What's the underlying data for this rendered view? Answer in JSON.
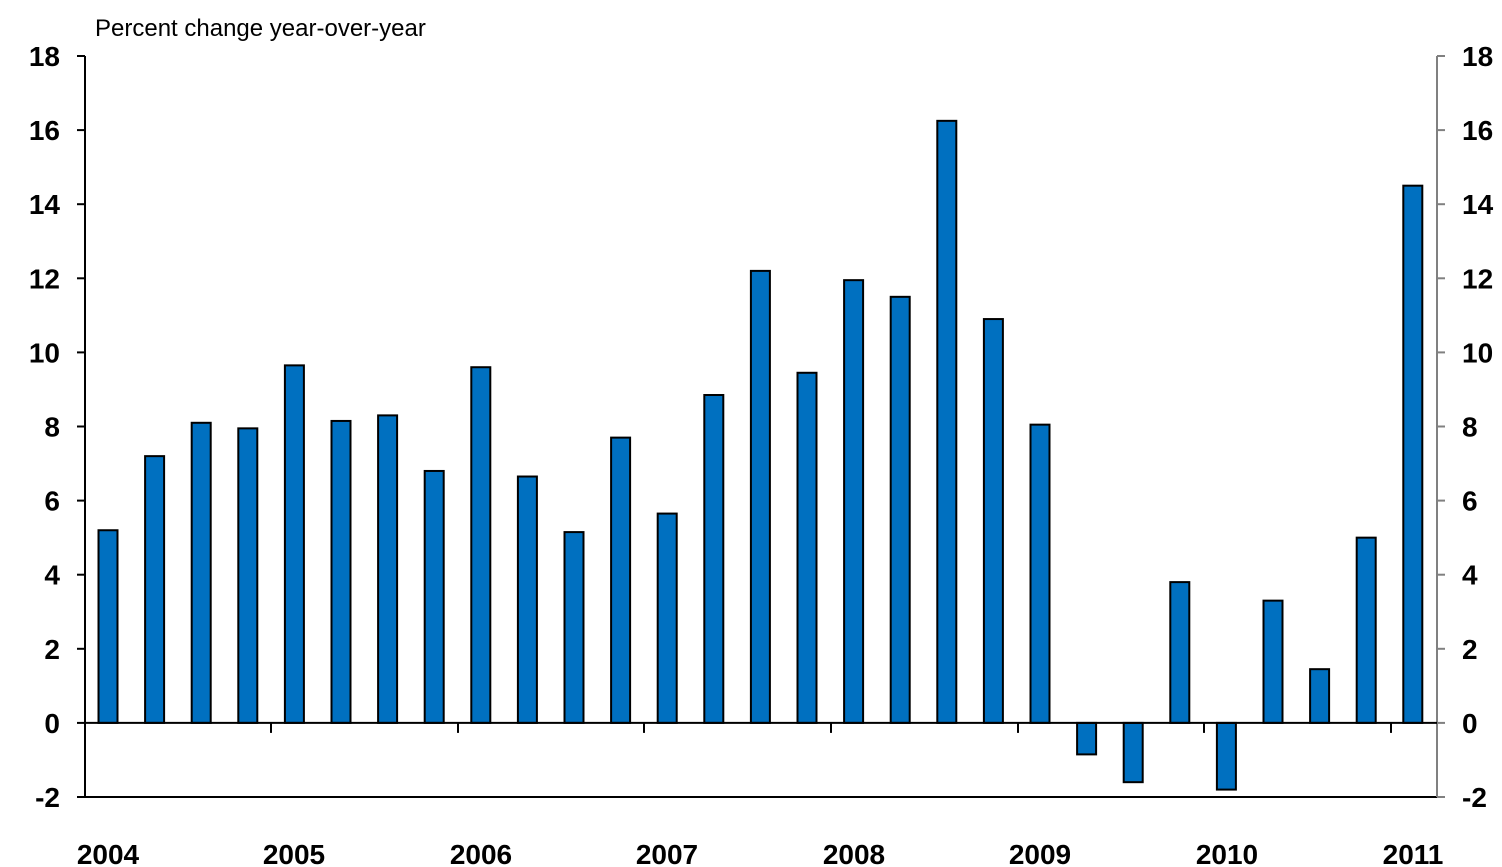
{
  "chart_data": {
    "type": "bar",
    "ylabel": "Percent change year-over-year",
    "ylim": [
      -2,
      18
    ],
    "yticks": [
      "18",
      "16",
      "14",
      "12",
      "10",
      "8",
      "6",
      "4",
      "2",
      "0",
      "-2"
    ],
    "ytick_values": [
      18,
      16,
      14,
      12,
      10,
      8,
      6,
      4,
      2,
      0,
      -2
    ],
    "xticks": [
      "2004",
      "2005",
      "2006",
      "2007",
      "2008",
      "2009",
      "2010",
      "2011"
    ],
    "grid": false,
    "right_axis": true,
    "series": [
      {
        "values": [
          5.2,
          7.2,
          8.1,
          7.95,
          9.65,
          8.15,
          8.3,
          6.8,
          9.6,
          6.65,
          5.15,
          7.7,
          5.65,
          8.85,
          12.2,
          9.45,
          11.95,
          11.5,
          16.25,
          10.9,
          8.05,
          -0.85,
          -1.6,
          3.8,
          -1.8,
          3.3,
          1.45,
          5.0,
          14.5
        ]
      }
    ],
    "colors": {
      "bar_fill": "#0070C0",
      "bar_stroke": "#000000",
      "axis": "#000000",
      "right_axis": "#808080"
    }
  }
}
